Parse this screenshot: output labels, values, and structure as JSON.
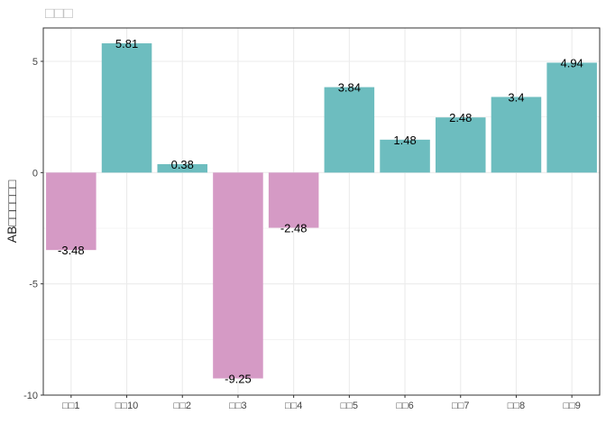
{
  "chart_data": {
    "type": "bar",
    "title": "□□□",
    "xlabel": "",
    "ylabel": "AB□□□□□□",
    "categories": [
      "□□1",
      "□□10",
      "□□2",
      "□□3",
      "□□4",
      "□□5",
      "□□6",
      "□□7",
      "□□8",
      "□□9"
    ],
    "values": [
      -3.48,
      5.81,
      0.38,
      -9.25,
      -2.48,
      3.84,
      1.48,
      2.48,
      3.4,
      4.94
    ],
    "labels": [
      "-3.48",
      "5.81",
      "0.38",
      "-9.25",
      "-2.48",
      "3.84",
      "1.48",
      "2.48",
      "3.4",
      "4.94"
    ],
    "ylim": [
      -10,
      6.5
    ],
    "yticks": [
      -10,
      -5,
      0,
      5
    ],
    "ytick_labels": [
      "-10",
      "-5",
      "0",
      "5"
    ],
    "grid": true,
    "legend": "none",
    "colors": {
      "positive": "#6dbdbf",
      "negative": "#d59ac5",
      "grid": "#ebebeb",
      "panel_border": "#333333"
    }
  }
}
